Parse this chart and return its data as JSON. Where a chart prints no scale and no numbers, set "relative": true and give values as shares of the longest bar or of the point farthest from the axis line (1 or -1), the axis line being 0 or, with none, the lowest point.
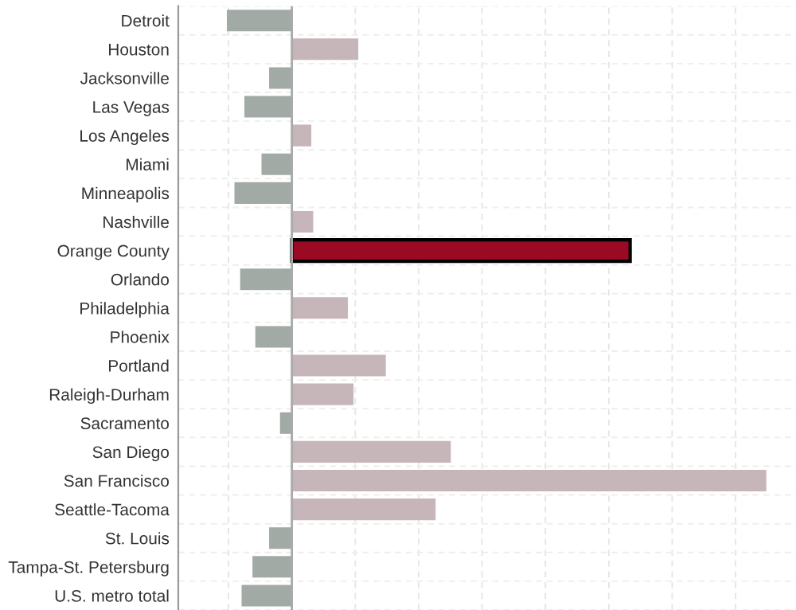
{
  "chart_data": {
    "type": "bar",
    "orientation": "horizontal",
    "relative": true,
    "grid": true,
    "categories": [
      "Detroit",
      "Houston",
      "Jacksonville",
      "Las Vegas",
      "Los Angeles",
      "Miami",
      "Minneapolis",
      "Nashville",
      "Orange County",
      "Orlando",
      "Philadelphia",
      "Phoenix",
      "Portland",
      "Raleigh-Durham",
      "Sacramento",
      "San Diego",
      "San Francisco",
      "Seattle-Tacoma",
      "St. Louis",
      "Tampa-St. Petersburg",
      "U.S. metro total"
    ],
    "values": [
      -0.137,
      0.14,
      -0.048,
      -0.1,
      0.041,
      -0.064,
      -0.121,
      0.045,
      0.713,
      -0.109,
      0.118,
      -0.077,
      0.198,
      0.13,
      -0.025,
      0.335,
      1.0,
      0.303,
      -0.048,
      -0.083,
      -0.106
    ],
    "colors": [
      "#a2aaa5",
      "#c6b5b9",
      "#a2aaa5",
      "#a2aaa5",
      "#c6b5b9",
      "#a2aaa5",
      "#a2aaa5",
      "#c6b5b9",
      "#9a0a24",
      "#a2aaa5",
      "#c6b5b9",
      "#a2aaa5",
      "#c6b5b9",
      "#c6b5b9",
      "#a2aaa5",
      "#c6b5b9",
      "#c6b5b9",
      "#c6b5b9",
      "#a2aaa5",
      "#a2aaa5",
      "#a2aaa5"
    ]
  }
}
